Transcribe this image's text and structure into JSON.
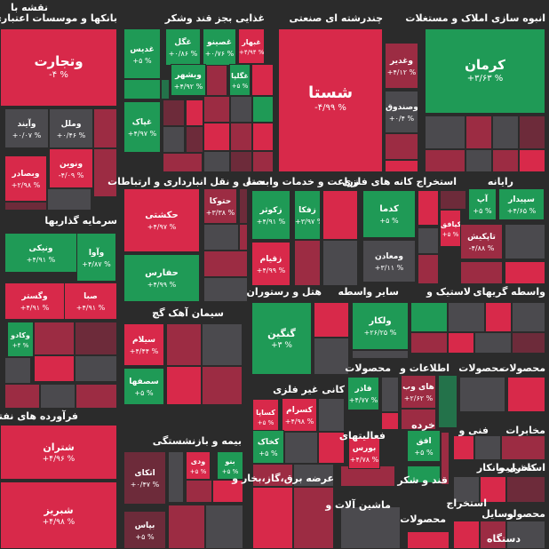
{
  "colors": {
    "bg": "#2b2b2b",
    "red": "#d8294a",
    "dark_red": "#6d2b3a",
    "mid_red": "#9c2c43",
    "gray": "#4b4a4e",
    "green": "#1f9a56",
    "light_green": "#17b066",
    "dark_green": "#23724a"
  },
  "chart_data": {
    "type": "treemap",
    "sectors": [
      {
        "name": "نقشه با"
      },
      {
        "name": "بانکها و موسسات اعتباری"
      },
      {
        "name": "غذایی بجز قند وشکر"
      },
      {
        "name": "چندرشته ای صنعتی"
      },
      {
        "name": "انبوه سازی املاک و مستغلات"
      },
      {
        "name": "سرمایه گذاریها"
      },
      {
        "name": "حمل و نقل انبارداری و ارتباطات"
      },
      {
        "name": "زراعت و خدمات وابسته"
      },
      {
        "name": "استخراج کانه های فلزی"
      },
      {
        "name": "رایانه"
      },
      {
        "name": "هتل و رستوران"
      },
      {
        "name": "سایر واسطه"
      },
      {
        "name": "لاستیک و"
      },
      {
        "name": "واسطه گریهای"
      },
      {
        "name": "سیمان آهک گچ"
      },
      {
        "name": "کانی غیر فلزی"
      },
      {
        "name": "محصولات"
      },
      {
        "name": "اطلاعات و"
      },
      {
        "name": "محصولات"
      },
      {
        "name": "محصولات"
      },
      {
        "name": "فرآورده های نفتی"
      },
      {
        "name": "بیمه و بازنشستگی"
      },
      {
        "name": "فعالیتهای"
      },
      {
        "name": "خرده"
      },
      {
        "name": "فنی و"
      },
      {
        "name": "مخابرات"
      },
      {
        "name": "قند و شکر"
      },
      {
        "name": "عرضه برق،گاز،بخار و"
      },
      {
        "name": "ماشین آلات و"
      },
      {
        "name": "محصولات"
      },
      {
        "name": "استخراج"
      },
      {
        "name": "کاشی و"
      },
      {
        "name": "استخرا"
      },
      {
        "name": "بیمانکار"
      },
      {
        "name": "محصولو"
      },
      {
        "name": "وسایل"
      },
      {
        "name": "دستگاه"
      }
    ],
    "tiles": [
      {
        "name": "وتجارت",
        "value": "-۴ %",
        "color": "red"
      },
      {
        "name": "وآیند",
        "value": "+۰/۰۷ %",
        "color": "gray"
      },
      {
        "name": "وملل",
        "value": "+۰/۴۶ %",
        "color": "gray"
      },
      {
        "name": "ونوین",
        "value": "-۴/۰۹ %",
        "color": "red"
      },
      {
        "name": "وبصادر",
        "value": "+۲/۹۸ %",
        "color": "red"
      },
      {
        "name": "غدیس",
        "value": "+۵ %",
        "color": "green"
      },
      {
        "name": "غگل",
        "value": "+۰/۸۶ %",
        "color": "green"
      },
      {
        "name": "غصینو",
        "value": "+۰/۷۶ %",
        "color": "green"
      },
      {
        "name": "غبهار",
        "value": "+۴/۹۴ %",
        "color": "red"
      },
      {
        "name": "وبشهر",
        "value": "+۴/۹۲ %",
        "color": "green"
      },
      {
        "name": "غگلپا",
        "value": "+۵ %",
        "color": "green"
      },
      {
        "name": "غپاک",
        "value": "+۴/۹۷ %",
        "color": "green"
      },
      {
        "name": "شستا",
        "value": "-۴/۹۹ %",
        "color": "red"
      },
      {
        "name": "وغدیر",
        "value": "+۴/۱۲ %",
        "color": "mid_red"
      },
      {
        "name": "وصندوق",
        "value": "+۰/۴ %",
        "color": "gray"
      },
      {
        "name": "کرمان",
        "value": "+۳/۶۳ %",
        "color": "green"
      },
      {
        "name": "ونیکی",
        "value": "+۴/۹۱ %",
        "color": "green"
      },
      {
        "name": "وآوا",
        "value": "+۴/۸۷ %",
        "color": "green"
      },
      {
        "name": "وگستر",
        "value": "+۴/۹۱ %",
        "color": "red"
      },
      {
        "name": "صبا",
        "value": "+۴/۹۱ %",
        "color": "red"
      },
      {
        "name": "وکادو",
        "value": "+۴ %",
        "color": "green"
      },
      {
        "name": "حتوکا",
        "value": "+۳/۳۸ %",
        "color": "mid_red"
      },
      {
        "name": "حکشتی",
        "value": "+۴/۹۷ %",
        "color": "red"
      },
      {
        "name": "حفارس",
        "value": "+۴/۹۹ %",
        "color": "green"
      },
      {
        "name": "زکوثر",
        "value": "+۴/۹۱ %",
        "color": "green"
      },
      {
        "name": "زفکا",
        "value": "+۳/۹۷ %",
        "color": "green"
      },
      {
        "name": "زقیام",
        "value": "+۴/۹۹ %",
        "color": "red"
      },
      {
        "name": "کدما",
        "value": "+۵ %",
        "color": "green"
      },
      {
        "name": "ومعادن",
        "value": "+۳/۱۱ %",
        "color": "gray"
      },
      {
        "name": "کیافق",
        "value": "+۵ %",
        "color": "red"
      },
      {
        "name": "آپ",
        "value": "+۵ %",
        "color": "green"
      },
      {
        "name": "سپیدار",
        "value": "+۴/۶۵ %",
        "color": "green"
      },
      {
        "name": "تاپکیش",
        "value": "-۴/۸۸ %",
        "color": "mid_red"
      },
      {
        "name": "گنگین",
        "value": "+۳ %",
        "color": "green"
      },
      {
        "name": "ولکار",
        "value": "+۲۶/۲۵ %",
        "color": "green"
      },
      {
        "name": "سیلام",
        "value": "+۴/۴۴ %",
        "color": "red"
      },
      {
        "name": "سصفها",
        "value": "+۵ %",
        "color": "green"
      },
      {
        "name": "کسرام",
        "value": "+۴/۹۸ %",
        "color": "red"
      },
      {
        "name": "کساپا",
        "value": "+۵ %",
        "color": "red"
      },
      {
        "name": "کخاک",
        "value": "+۵ %",
        "color": "green"
      },
      {
        "name": "فاذر",
        "value": "+۴/۷۷ %",
        "color": "green"
      },
      {
        "name": "های وب",
        "value": "+۲/۶۲ %",
        "color": "mid_red"
      },
      {
        "name": "شتران",
        "value": "+۴/۹۶ %",
        "color": "red"
      },
      {
        "name": "شبریز",
        "value": "+۴/۹۸ %",
        "color": "red"
      },
      {
        "name": "اتکای",
        "value": "+۰/۴۷ %",
        "color": "dark_red"
      },
      {
        "name": "ودی",
        "value": "+۵ %",
        "color": "red"
      },
      {
        "name": "بنو",
        "value": "+۵ %",
        "color": "green"
      },
      {
        "name": "بپاس",
        "value": "+۵ %",
        "color": "dark_red"
      },
      {
        "name": "بورس",
        "value": "+۴/۷۸ %",
        "color": "red"
      },
      {
        "name": "افق",
        "value": "+۵ %",
        "color": "green"
      }
    ]
  }
}
